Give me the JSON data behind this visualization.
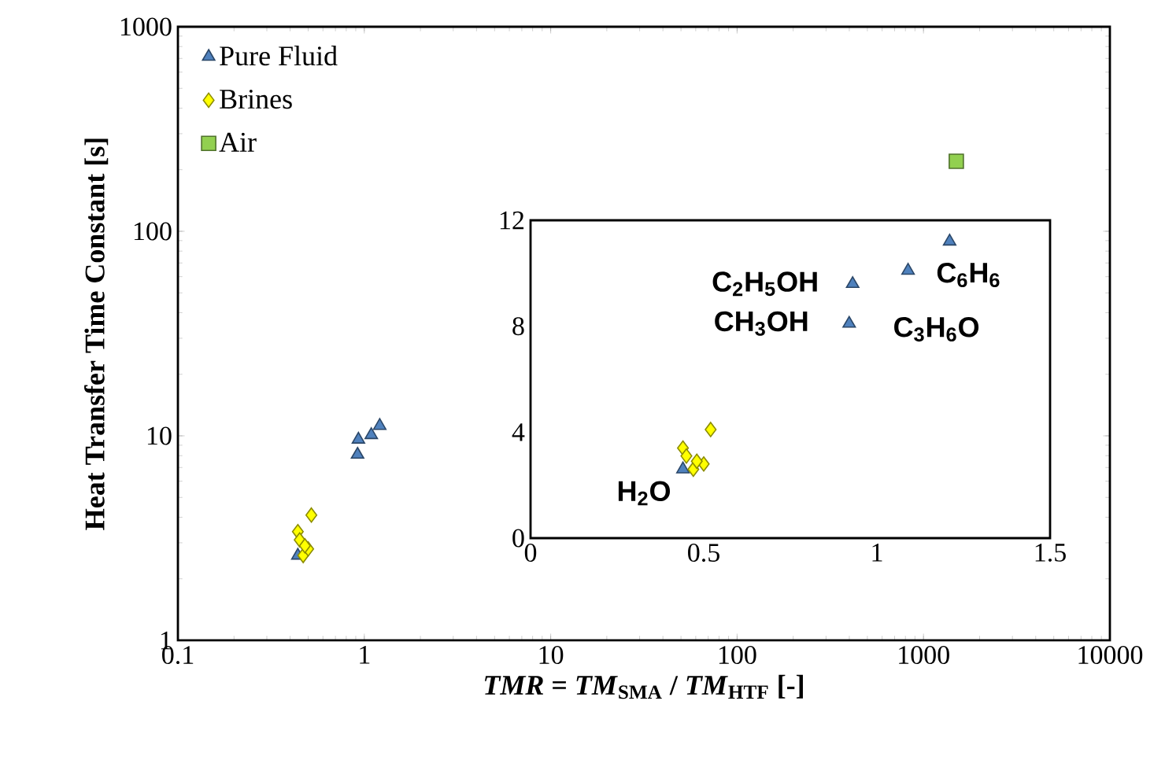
{
  "chart_data": [
    {
      "type": "scatter",
      "xlabel": "*TMR* = *TM*$_{SMA}$ / *TM*$_{HTF}$ [-]",
      "ylabel": "Heat Transfer Time Constant [s]",
      "log": "xy",
      "xlim": [
        0.1,
        10000
      ],
      "ylim": [
        1,
        1000
      ],
      "xticks": [
        0.1,
        1,
        10,
        100,
        1000,
        10000
      ],
      "yticks": [
        1,
        10,
        100,
        1000
      ],
      "legend": "top left",
      "series": [
        {
          "name": "Pure Fluid",
          "color": "#4f81bd",
          "marker": "triangle",
          "x": [
            1.21,
            1.09,
            0.93,
            0.92,
            0.44
          ],
          "values": [
            11.2,
            10.1,
            9.6,
            8.1,
            2.6
          ]
        },
        {
          "name": "Brines",
          "color": "#ffff00",
          "marker": "diamond",
          "x": [
            0.52,
            0.44,
            0.45,
            0.47,
            0.5,
            0.48
          ],
          "values": [
            4.1,
            3.4,
            3.1,
            2.6,
            2.8,
            2.9
          ]
        },
        {
          "name": "Air",
          "color": "#92d050",
          "marker": "square",
          "x": [
            1500
          ],
          "values": [
            220
          ]
        }
      ]
    },
    {
      "type": "scatter",
      "xlim": [
        0,
        1.5
      ],
      "ylim": [
        0,
        12
      ],
      "xticks": [
        0,
        0.5,
        1,
        1.5
      ],
      "yticks": [
        0,
        4,
        8,
        12
      ],
      "series": [
        {
          "color": "#4f81bd",
          "marker": "triangle",
          "x": [
            1.21,
            1.09,
            0.93,
            0.92,
            0.44
          ],
          "values": [
            11.2,
            10.1,
            9.6,
            8.1,
            2.6
          ]
        },
        {
          "color": "#ffff00",
          "marker": "diamond",
          "x": [
            0.52,
            0.44,
            0.45,
            0.47,
            0.5,
            0.48
          ],
          "values": [
            4.1,
            3.4,
            3.1,
            2.6,
            2.8,
            2.9
          ]
        }
      ],
      "annotations": [
        {
          "text": "H$_{2}$O",
          "x": 0.44,
          "y": 2.6
        },
        {
          "text": "CH$_{3}$OH",
          "x": 0.92,
          "y": 8.1
        },
        {
          "text": "C$_{2}$H$_{5}$OH",
          "x": 0.93,
          "y": 9.6
        },
        {
          "text": "C$_{3}$H$_{6}$O",
          "x": 1.09,
          "y": 10.1
        },
        {
          "text": "C$_{6}$H$_{6}$",
          "x": 1.21,
          "y": 11.2
        }
      ]
    }
  ]
}
